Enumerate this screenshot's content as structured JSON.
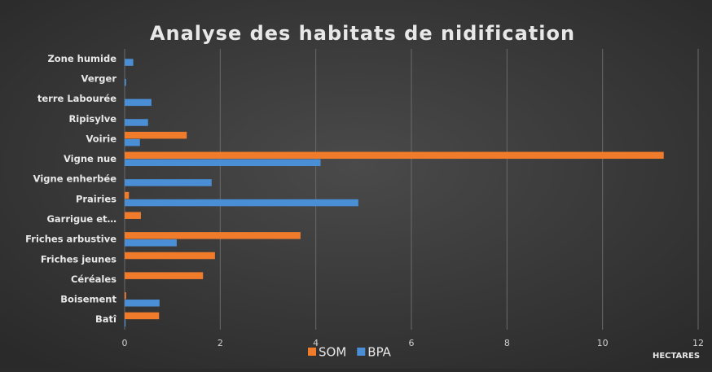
{
  "chart_data": {
    "type": "hbar",
    "title": "Analyse des habitats de nidification",
    "x_label": "HECTARES",
    "categories": [
      "Zone humide",
      "Verger",
      "terre Labourée",
      "Ripisylve",
      "Voirie",
      "Vigne nue",
      "Vigne enherbée",
      "Prairies",
      "Garrigue et…",
      "Friches arbustive",
      "Friches jeunes",
      "Céréales",
      "Boisement",
      "Batî"
    ],
    "series": [
      {
        "name": "SOM",
        "color": "#f07b2a",
        "values": [
          0,
          0,
          0,
          0,
          1.3,
          11.28,
          0,
          0.09,
          0.34,
          3.68,
          1.89,
          1.64,
          0.03,
          0.72
        ]
      },
      {
        "name": "BPA",
        "color": "#4a8fd6",
        "values": [
          0.18,
          0.03,
          0.56,
          0.49,
          0.32,
          4.1,
          1.82,
          4.89,
          0,
          1.09,
          0,
          0,
          0.73,
          0.02
        ]
      }
    ],
    "xlim": [
      0,
      12
    ],
    "xticks": [
      0,
      2,
      4,
      6,
      8,
      10,
      12
    ],
    "grid": true,
    "legend": "bottom"
  }
}
